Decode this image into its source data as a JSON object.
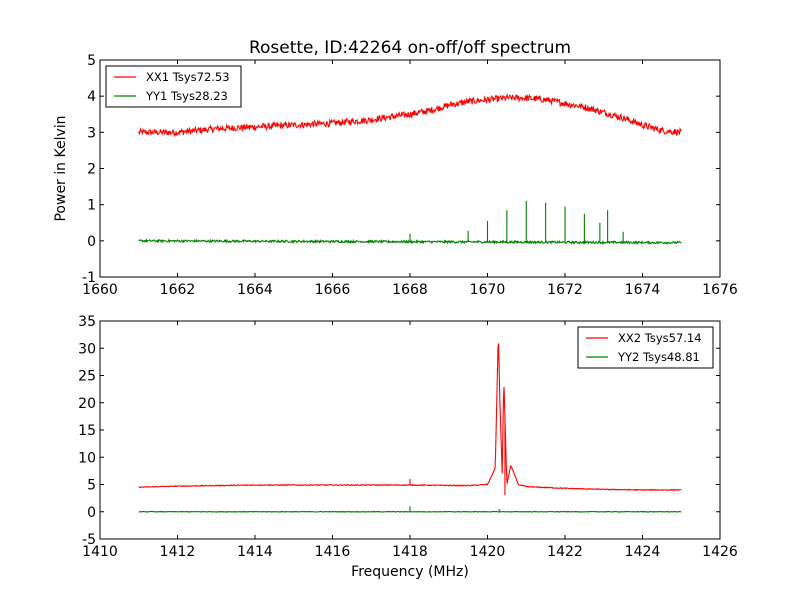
{
  "figure_title": "Rosette, ID:42264 on-off/off spectrum",
  "colors": {
    "xx": "#ff0000",
    "yy": "#008000",
    "axes": "#000000"
  },
  "chart_data": [
    {
      "type": "line",
      "title": "",
      "xlabel": "",
      "ylabel": "Power in Kelvin",
      "xlim": [
        1660,
        1676
      ],
      "ylim": [
        -1,
        5
      ],
      "xticks": [
        1660,
        1662,
        1664,
        1666,
        1668,
        1670,
        1672,
        1674,
        1676
      ],
      "yticks": [
        -1,
        0,
        1,
        2,
        3,
        4,
        5
      ],
      "grid": false,
      "legend_position": "top-left",
      "series": [
        {
          "name": "XX1 Tsys72.53",
          "color": "#ff0000",
          "noise": 0.09,
          "x": [
            1661.0,
            1662.0,
            1663.0,
            1664.0,
            1665.0,
            1666.0,
            1667.0,
            1668.0,
            1668.5,
            1669.0,
            1669.5,
            1670.0,
            1670.5,
            1671.0,
            1671.5,
            1672.0,
            1672.5,
            1673.0,
            1673.5,
            1674.0,
            1674.5,
            1675.0
          ],
          "y": [
            3.0,
            3.0,
            3.1,
            3.15,
            3.2,
            3.25,
            3.35,
            3.5,
            3.6,
            3.75,
            3.85,
            3.9,
            3.95,
            3.95,
            3.9,
            3.8,
            3.7,
            3.55,
            3.4,
            3.2,
            3.05,
            3.0
          ],
          "spikes": []
        },
        {
          "name": "YY1 Tsys28.23",
          "color": "#008000",
          "noise": 0.03,
          "x": [
            1661.0,
            1675.0
          ],
          "y": [
            0.0,
            -0.05
          ],
          "spikes": [
            {
              "x": 1668.0,
              "y": 0.2
            },
            {
              "x": 1669.5,
              "y": 0.28
            },
            {
              "x": 1670.0,
              "y": 0.55
            },
            {
              "x": 1670.5,
              "y": 0.85
            },
            {
              "x": 1671.0,
              "y": 1.1
            },
            {
              "x": 1671.5,
              "y": 1.05
            },
            {
              "x": 1672.0,
              "y": 0.95
            },
            {
              "x": 1672.5,
              "y": 0.75
            },
            {
              "x": 1672.9,
              "y": 0.5
            },
            {
              "x": 1673.1,
              "y": 0.85
            },
            {
              "x": 1673.5,
              "y": 0.25
            }
          ]
        }
      ]
    },
    {
      "type": "line",
      "title": "",
      "xlabel": "Frequency (MHz)",
      "ylabel": "",
      "xlim": [
        1410,
        1426
      ],
      "ylim": [
        -5,
        35
      ],
      "xticks": [
        1410,
        1412,
        1414,
        1416,
        1418,
        1420,
        1422,
        1424,
        1426
      ],
      "yticks": [
        -5,
        0,
        5,
        10,
        15,
        20,
        25,
        30,
        35
      ],
      "grid": false,
      "legend_position": "top-right",
      "series": [
        {
          "name": "XX2 Tsys57.14",
          "color": "#ff0000",
          "noise": 0.08,
          "x": [
            1411.0,
            1412.0,
            1414.0,
            1416.0,
            1418.0,
            1419.5,
            1420.0,
            1420.2,
            1420.28,
            1420.32,
            1420.38,
            1420.42,
            1420.5,
            1420.6,
            1420.8,
            1421.0,
            1422.0,
            1423.0,
            1424.0,
            1425.0
          ],
          "y": [
            4.5,
            4.7,
            4.9,
            4.9,
            4.9,
            4.8,
            5.0,
            8.0,
            33.0,
            20.0,
            7.0,
            24.5,
            5.0,
            8.5,
            5.0,
            4.6,
            4.3,
            4.1,
            4.0,
            4.0
          ],
          "spikes": [
            {
              "x": 1418.0,
              "y": 6.0
            },
            {
              "x": 1420.45,
              "y": 3.0
            }
          ]
        },
        {
          "name": "YY2 Tsys48.81",
          "color": "#008000",
          "noise": 0.06,
          "x": [
            1411.0,
            1425.0
          ],
          "y": [
            0.0,
            0.0
          ],
          "spikes": [
            {
              "x": 1418.0,
              "y": 1.0
            },
            {
              "x": 1420.3,
              "y": 0.5
            }
          ]
        }
      ]
    }
  ]
}
